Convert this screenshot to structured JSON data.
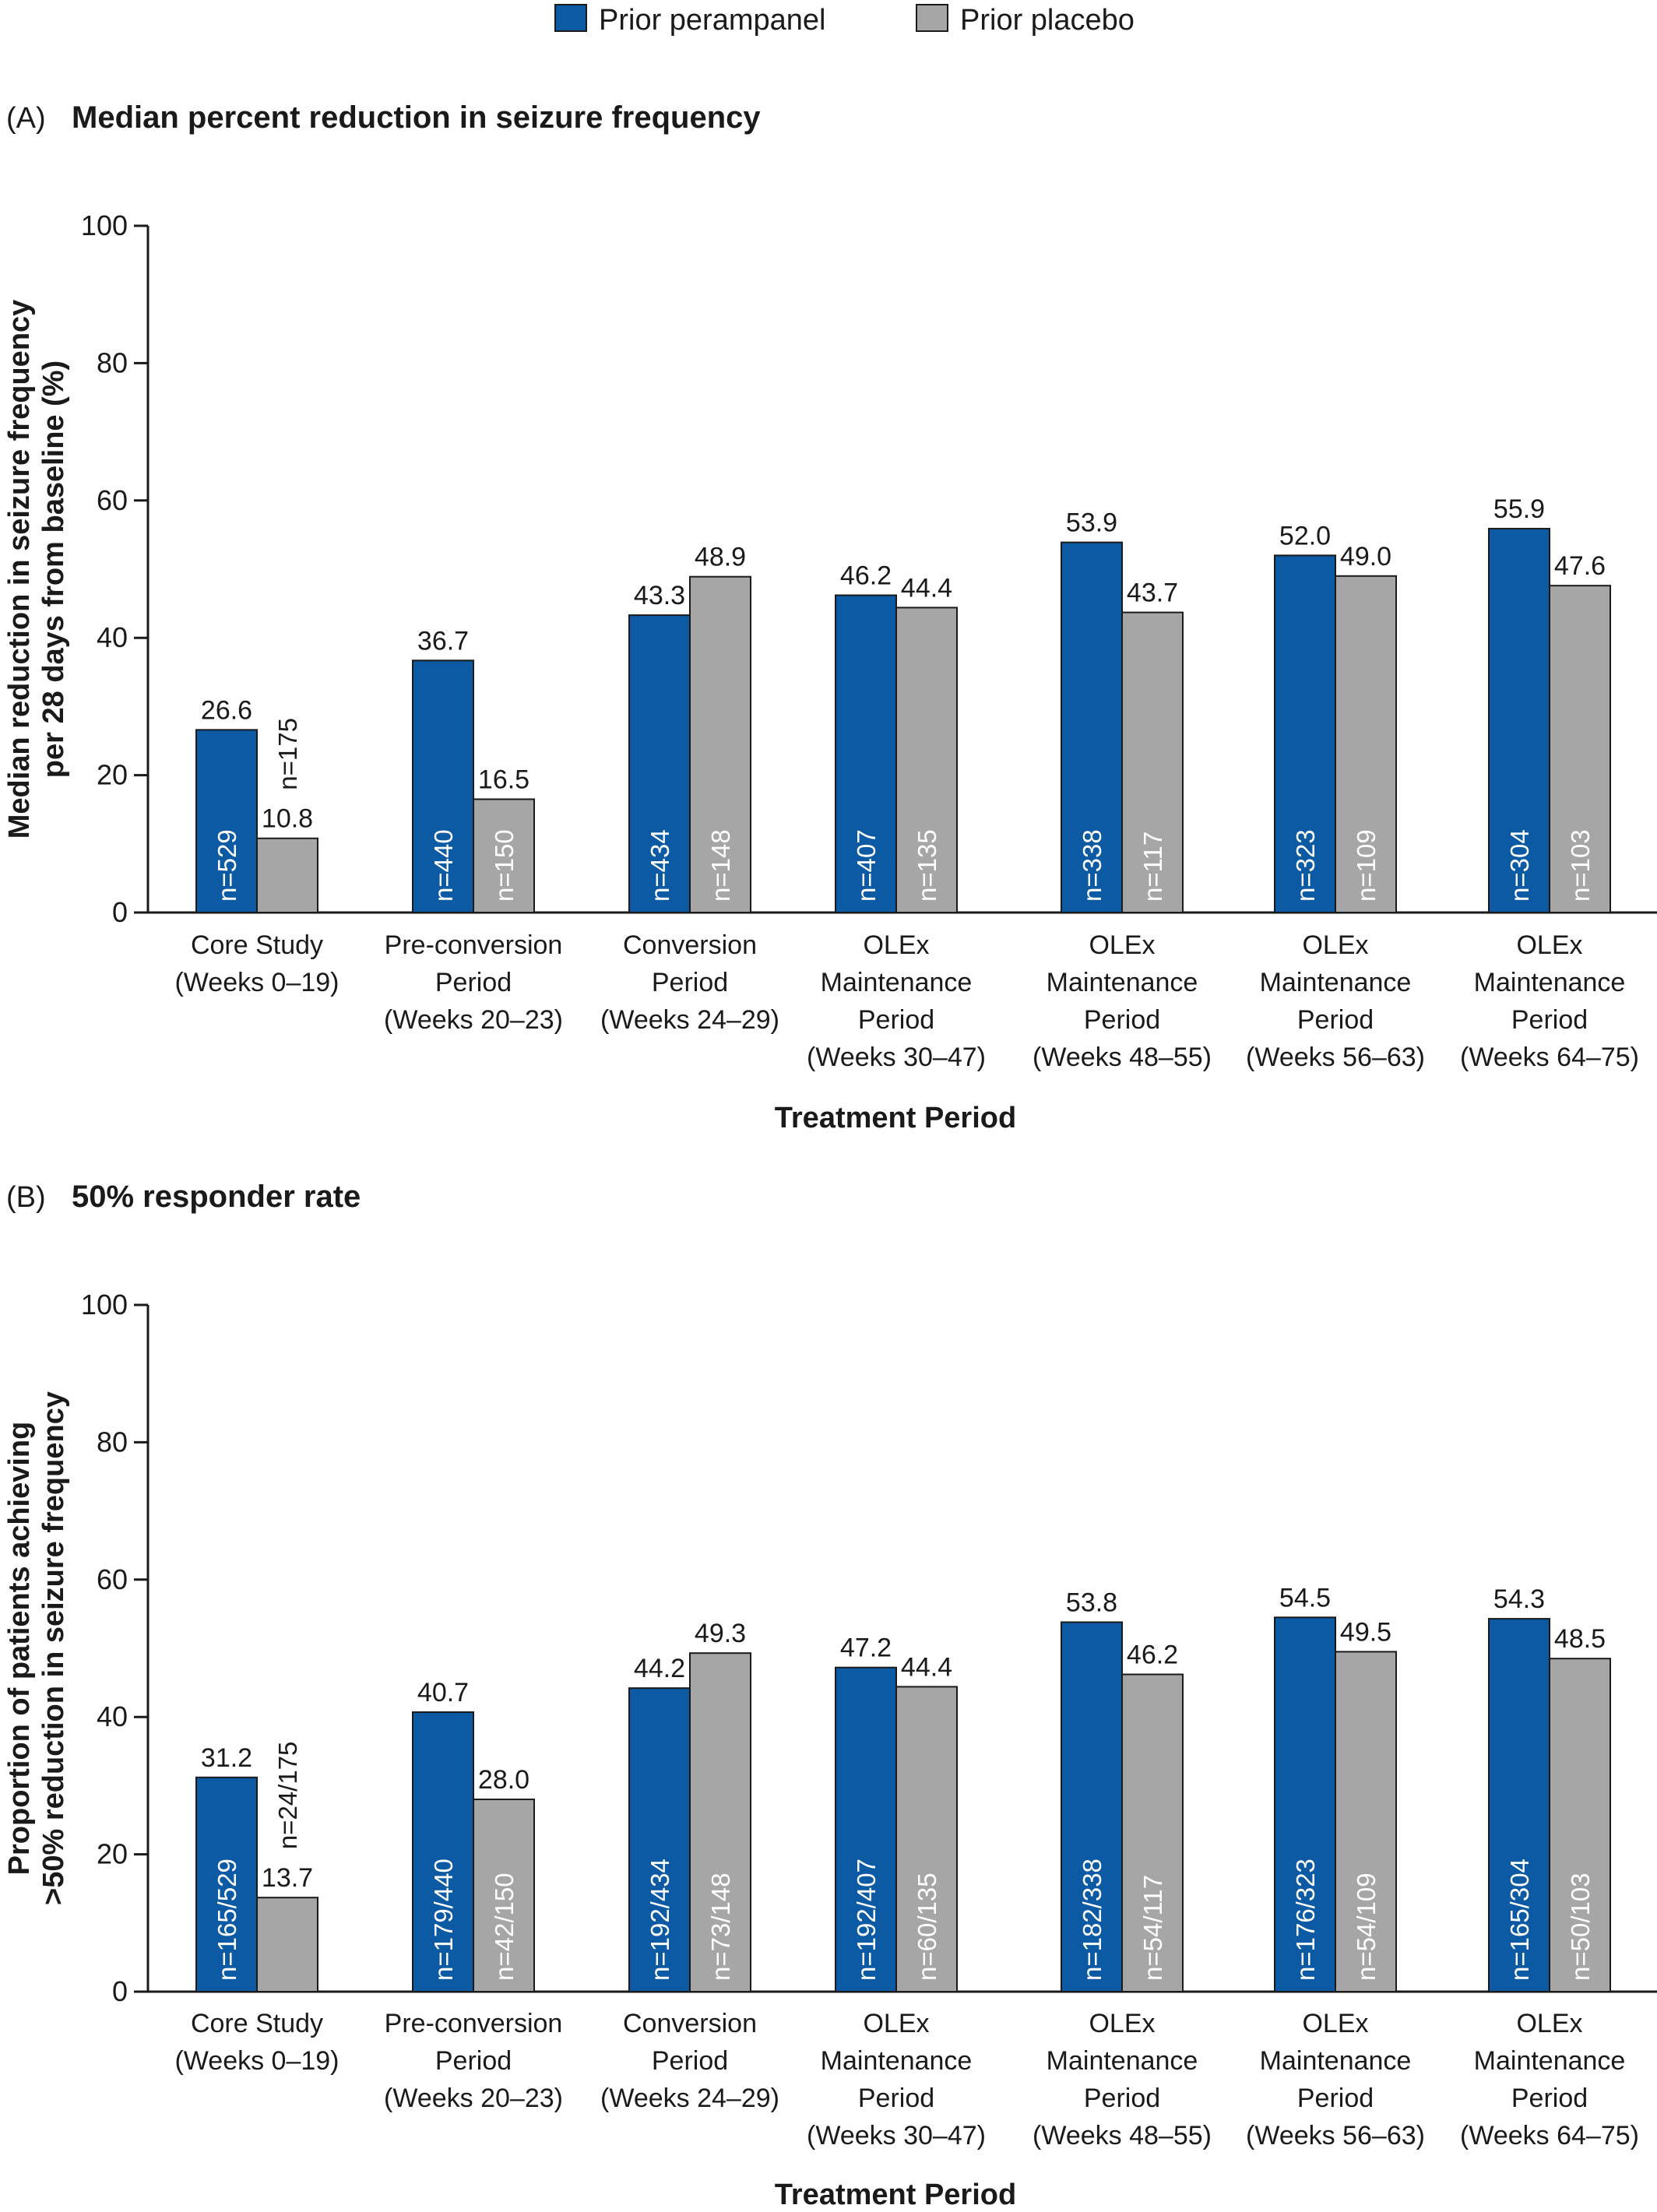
{
  "legend": {
    "items": [
      {
        "name": "Prior perampanel",
        "color": "#0b5aa3"
      },
      {
        "name": "Prior placebo",
        "color": "#a6a6a6"
      }
    ]
  },
  "chart_data": [
    {
      "type": "bar",
      "panel_letter": "(A)",
      "title": "Median percent reduction in seizure frequency",
      "ylabel_lines": [
        "Median reduction in seizure frequency",
        "per 28 days from baseline (%)"
      ],
      "xlabel": "Treatment Period",
      "ylim": [
        0,
        100
      ],
      "yticks": [
        0,
        20,
        40,
        60,
        80,
        100
      ],
      "grid": false,
      "categories": [
        [
          "Core Study",
          "(Weeks 0–19)"
        ],
        [
          "Pre-conversion",
          "Period",
          "(Weeks 20–23)"
        ],
        [
          "Conversion",
          "Period",
          "(Weeks 24–29)"
        ],
        [
          "OLEx",
          "Maintenance",
          "Period",
          "(Weeks 30–47)"
        ],
        [
          "OLEx",
          "Maintenance",
          "Period",
          "(Weeks 48–55)"
        ],
        [
          "OLEx",
          "Maintenance",
          "Period",
          "(Weeks 56–63)"
        ],
        [
          "OLEx",
          "Maintenance",
          "Period",
          "(Weeks 64–75)"
        ]
      ],
      "series": [
        {
          "name": "Prior perampanel",
          "values": [
            26.6,
            36.7,
            43.3,
            46.2,
            53.9,
            52.0,
            55.9
          ],
          "labels": [
            "26.6",
            "36.7",
            "43.3",
            "46.2",
            "53.9",
            "52.0",
            "55.9"
          ],
          "n": [
            "n=529",
            "n=440",
            "n=434",
            "n=407",
            "n=338",
            "n=323",
            "n=304"
          ]
        },
        {
          "name": "Prior placebo",
          "values": [
            10.8,
            16.5,
            48.9,
            44.4,
            43.7,
            49.0,
            47.6
          ],
          "labels": [
            "10.8",
            "16.5",
            "48.9",
            "44.4",
            "43.7",
            "49.0",
            "47.6"
          ],
          "n": [
            "n=175",
            "n=150",
            "n=148",
            "n=135",
            "n=117",
            "n=109",
            "n=103"
          ]
        }
      ]
    },
    {
      "type": "bar",
      "panel_letter": "(B)",
      "title": "50% responder rate",
      "ylabel_lines": [
        "Proportion of patients achieving",
        ">50% reduction in seizure frequency"
      ],
      "xlabel": "Treatment Period",
      "ylim": [
        0,
        100
      ],
      "yticks": [
        0,
        20,
        40,
        60,
        80,
        100
      ],
      "grid": false,
      "categories": [
        [
          "Core Study",
          "(Weeks 0–19)"
        ],
        [
          "Pre-conversion",
          "Period",
          "(Weeks 20–23)"
        ],
        [
          "Conversion",
          "Period",
          "(Weeks 24–29)"
        ],
        [
          "OLEx",
          "Maintenance",
          "Period",
          "(Weeks 30–47)"
        ],
        [
          "OLEx",
          "Maintenance",
          "Period",
          "(Weeks 48–55)"
        ],
        [
          "OLEx",
          "Maintenance",
          "Period",
          "(Weeks 56–63)"
        ],
        [
          "OLEx",
          "Maintenance",
          "Period",
          "(Weeks 64–75)"
        ]
      ],
      "series": [
        {
          "name": "Prior perampanel",
          "values": [
            31.2,
            40.7,
            44.2,
            47.2,
            53.8,
            54.5,
            54.3
          ],
          "labels": [
            "31.2",
            "40.7",
            "44.2",
            "47.2",
            "53.8",
            "54.5",
            "54.3"
          ],
          "n": [
            "n=165/529",
            "n=179/440",
            "n=192/434",
            "n=192/407",
            "n=182/338",
            "n=176/323",
            "n=165/304"
          ]
        },
        {
          "name": "Prior placebo",
          "values": [
            13.7,
            28.0,
            49.3,
            44.4,
            46.2,
            49.5,
            48.5
          ],
          "labels": [
            "13.7",
            "28.0",
            "49.3",
            "44.4",
            "46.2",
            "49.5",
            "48.5"
          ],
          "n": [
            "n=24/175",
            "n=42/150",
            "n=73/148",
            "n=60/135",
            "n=54/117",
            "n=54/109",
            "n=50/103"
          ]
        }
      ]
    }
  ]
}
